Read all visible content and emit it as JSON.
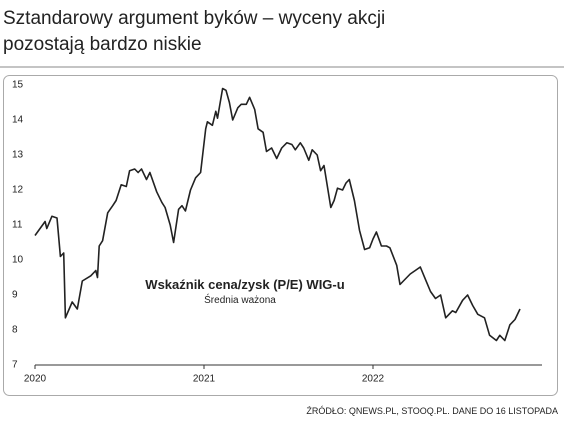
{
  "chart_data": {
    "type": "line",
    "title": "Sztandarowy argument byków – wyceny akcji",
    "subtitle": "pozostają bardzo niskie",
    "annotation": "Wskaźnik cena/zysk (P/E) WIG-u",
    "annotation_sub": "Średnia ważona",
    "source": "ŹRÓDŁO: QNEWS.PL, STOOQ.PL. DANE DO 16 LISTOPADA",
    "x": [
      2020.0,
      2020.06,
      2020.07,
      2020.1,
      2020.13,
      2020.15,
      2020.17,
      2020.18,
      2020.22,
      2020.25,
      2020.28,
      2020.33,
      2020.36,
      2020.37,
      2020.38,
      2020.4,
      2020.43,
      2020.46,
      2020.48,
      2020.51,
      2020.54,
      2020.56,
      2020.59,
      2020.61,
      2020.63,
      2020.66,
      2020.68,
      2020.72,
      2020.75,
      2020.77,
      2020.8,
      2020.82,
      2020.85,
      2020.87,
      2020.89,
      2020.92,
      2020.95,
      2020.98,
      2021.01,
      2021.02,
      2021.05,
      2021.07,
      2021.08,
      2021.11,
      2021.13,
      2021.15,
      2021.17,
      2021.2,
      2021.22,
      2021.25,
      2021.27,
      2021.3,
      2021.32,
      2021.35,
      2021.37,
      2021.4,
      2021.43,
      2021.46,
      2021.49,
      2021.52,
      2021.54,
      2021.57,
      2021.59,
      2021.62,
      2021.64,
      2021.67,
      2021.69,
      2021.71,
      2021.75,
      2021.77,
      2021.79,
      2021.82,
      2021.84,
      2021.86,
      2021.89,
      2021.92,
      2021.95,
      2021.98,
      2022.0,
      2022.02,
      2022.05,
      2022.08,
      2022.1,
      2022.14,
      2022.16,
      2022.18,
      2022.22,
      2022.25,
      2022.28,
      2022.31,
      2022.34,
      2022.37,
      2022.4,
      2022.43,
      2022.47,
      2022.49,
      2022.53,
      2022.56,
      2022.59,
      2022.62,
      2022.66,
      2022.69,
      2022.73,
      2022.75,
      2022.78,
      2022.81,
      2022.84,
      2022.87
    ],
    "series": [
      {
        "name": "P/E WIG",
        "color": "#222222",
        "values": [
          10.7,
          11.1,
          10.9,
          11.25,
          11.2,
          10.1,
          10.2,
          8.35,
          8.8,
          8.6,
          9.4,
          9.55,
          9.7,
          9.5,
          10.4,
          10.55,
          11.35,
          11.55,
          11.7,
          12.15,
          12.1,
          12.55,
          12.6,
          12.5,
          12.6,
          12.3,
          12.5,
          11.95,
          11.65,
          11.5,
          11.0,
          10.5,
          11.45,
          11.55,
          11.4,
          12.0,
          12.35,
          12.5,
          13.75,
          13.95,
          13.85,
          14.25,
          14.05,
          14.9,
          14.85,
          14.5,
          14.0,
          14.35,
          14.45,
          14.45,
          14.65,
          14.3,
          13.75,
          13.65,
          13.1,
          13.2,
          12.9,
          13.2,
          13.35,
          13.3,
          13.15,
          13.35,
          13.2,
          12.85,
          13.15,
          13.0,
          12.55,
          12.7,
          11.5,
          11.7,
          12.05,
          12.0,
          12.2,
          12.3,
          11.7,
          10.85,
          10.3,
          10.35,
          10.6,
          10.8,
          10.4,
          10.4,
          10.35,
          9.85,
          9.3,
          9.4,
          9.6,
          9.7,
          9.8,
          9.45,
          9.1,
          8.9,
          9.0,
          8.35,
          8.55,
          8.5,
          8.85,
          9.0,
          8.7,
          8.45,
          8.35,
          7.85,
          7.7,
          7.85,
          7.7,
          8.15,
          8.3,
          8.6
        ]
      }
    ],
    "xlim": [
      2020,
      2023
    ],
    "xticks": [
      2020,
      2021,
      2022
    ],
    "ylim": [
      7,
      15
    ],
    "yticks": [
      7,
      8,
      9,
      10,
      11,
      12,
      13,
      14,
      15
    ]
  }
}
